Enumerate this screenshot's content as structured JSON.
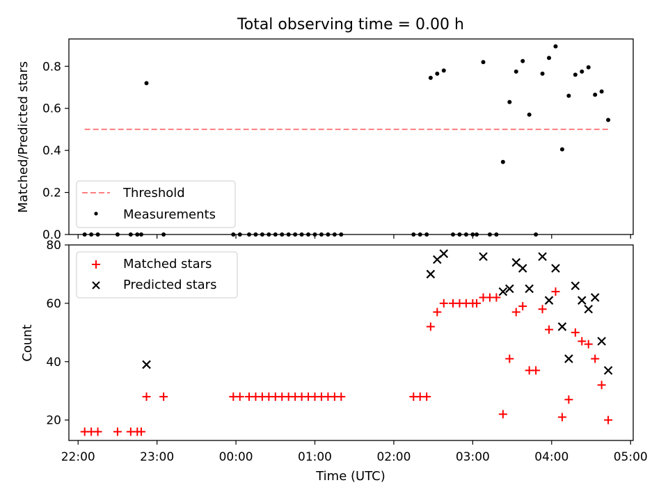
{
  "chart_data": [
    {
      "type": "scatter",
      "title": "Total observing time = 0.00 h",
      "ylabel": "Matched/Predicted stars",
      "xlim": [
        "21:53",
        "05:02"
      ],
      "ylim": [
        0,
        0.93
      ],
      "yticks": [
        0.0,
        0.2,
        0.4,
        0.6,
        0.8
      ],
      "ytick_labels": [
        "0.0",
        "0.2",
        "0.4",
        "0.6",
        "0.8"
      ],
      "legend": "lower-left",
      "series": [
        {
          "name": "Threshold",
          "style": "dashed",
          "color": "#ff7f7f",
          "points": [
            [
              "22:05",
              0.5
            ],
            [
              "04:43",
              0.5
            ]
          ]
        },
        {
          "name": "Measurements",
          "style": "dot",
          "color": "#000000",
          "points": [
            [
              "22:05",
              0.0
            ],
            [
              "22:10",
              0.0
            ],
            [
              "22:15",
              0.0
            ],
            [
              "22:30",
              0.0
            ],
            [
              "22:40",
              0.0
            ],
            [
              "22:45",
              0.0
            ],
            [
              "22:48",
              0.0
            ],
            [
              "22:52",
              0.72
            ],
            [
              "23:05",
              0.0
            ],
            [
              "23:58",
              0.0
            ],
            [
              "00:03",
              0.0
            ],
            [
              "00:10",
              0.0
            ],
            [
              "00:15",
              0.0
            ],
            [
              "00:20",
              0.0
            ],
            [
              "00:25",
              0.0
            ],
            [
              "00:30",
              0.0
            ],
            [
              "00:35",
              0.0
            ],
            [
              "00:40",
              0.0
            ],
            [
              "00:45",
              0.0
            ],
            [
              "00:50",
              0.0
            ],
            [
              "00:55",
              0.0
            ],
            [
              "01:00",
              0.0
            ],
            [
              "01:05",
              0.0
            ],
            [
              "01:10",
              0.0
            ],
            [
              "01:15",
              0.0
            ],
            [
              "01:20",
              0.0
            ],
            [
              "02:15",
              0.0
            ],
            [
              "02:20",
              0.0
            ],
            [
              "02:25",
              0.0
            ],
            [
              "02:28",
              0.745
            ],
            [
              "02:33",
              0.765
            ],
            [
              "02:38",
              0.78
            ],
            [
              "02:45",
              0.0
            ],
            [
              "02:50",
              0.0
            ],
            [
              "02:55",
              0.0
            ],
            [
              "03:00",
              0.0
            ],
            [
              "03:03",
              0.0
            ],
            [
              "03:08",
              0.82
            ],
            [
              "03:13",
              0.0
            ],
            [
              "03:18",
              0.0
            ],
            [
              "03:23",
              0.345
            ],
            [
              "03:28",
              0.63
            ],
            [
              "03:33",
              0.775
            ],
            [
              "03:38",
              0.825
            ],
            [
              "03:43",
              0.57
            ],
            [
              "03:48",
              0.0
            ],
            [
              "03:53",
              0.765
            ],
            [
              "03:58",
              0.84
            ],
            [
              "04:03",
              0.895
            ],
            [
              "04:08",
              0.405
            ],
            [
              "04:13",
              0.66
            ],
            [
              "04:18",
              0.76
            ],
            [
              "04:23",
              0.775
            ],
            [
              "04:28",
              0.795
            ],
            [
              "04:33",
              0.665
            ],
            [
              "04:38",
              0.68
            ],
            [
              "04:43",
              0.545
            ]
          ]
        }
      ]
    },
    {
      "type": "scatter",
      "xlabel": "Time (UTC)",
      "ylabel": "Count",
      "xlim": [
        "21:53",
        "05:02"
      ],
      "ylim": [
        13,
        80
      ],
      "yticks": [
        20,
        40,
        60,
        80
      ],
      "ytick_labels": [
        "20",
        "40",
        "60",
        "80"
      ],
      "xtick_labels": [
        "22:00",
        "23:00",
        "00:00",
        "01:00",
        "02:00",
        "03:00",
        "04:00",
        "05:00"
      ],
      "legend": "top-left",
      "series": [
        {
          "name": "Matched stars",
          "marker": "+",
          "color": "#ff0000",
          "points": [
            [
              "22:05",
              16
            ],
            [
              "22:10",
              16
            ],
            [
              "22:15",
              16
            ],
            [
              "22:30",
              16
            ],
            [
              "22:40",
              16
            ],
            [
              "22:45",
              16
            ],
            [
              "22:48",
              16
            ],
            [
              "22:52",
              28
            ],
            [
              "23:05",
              28
            ],
            [
              "23:58",
              28
            ],
            [
              "00:03",
              28
            ],
            [
              "00:10",
              28
            ],
            [
              "00:15",
              28
            ],
            [
              "00:20",
              28
            ],
            [
              "00:25",
              28
            ],
            [
              "00:30",
              28
            ],
            [
              "00:35",
              28
            ],
            [
              "00:40",
              28
            ],
            [
              "00:45",
              28
            ],
            [
              "00:50",
              28
            ],
            [
              "00:55",
              28
            ],
            [
              "01:00",
              28
            ],
            [
              "01:05",
              28
            ],
            [
              "01:10",
              28
            ],
            [
              "01:15",
              28
            ],
            [
              "01:20",
              28
            ],
            [
              "02:15",
              28
            ],
            [
              "02:20",
              28
            ],
            [
              "02:25",
              28
            ],
            [
              "02:28",
              52
            ],
            [
              "02:33",
              57
            ],
            [
              "02:38",
              60
            ],
            [
              "02:45",
              60
            ],
            [
              "02:50",
              60
            ],
            [
              "02:55",
              60
            ],
            [
              "03:00",
              60
            ],
            [
              "03:03",
              60
            ],
            [
              "03:08",
              62
            ],
            [
              "03:13",
              62
            ],
            [
              "03:18",
              62
            ],
            [
              "03:23",
              22
            ],
            [
              "03:28",
              41
            ],
            [
              "03:33",
              57
            ],
            [
              "03:38",
              59
            ],
            [
              "03:43",
              37
            ],
            [
              "03:48",
              37
            ],
            [
              "03:53",
              58
            ],
            [
              "03:58",
              51
            ],
            [
              "04:03",
              64
            ],
            [
              "04:08",
              21
            ],
            [
              "04:13",
              27
            ],
            [
              "04:18",
              50
            ],
            [
              "04:23",
              47
            ],
            [
              "04:28",
              46
            ],
            [
              "04:33",
              41
            ],
            [
              "04:38",
              32
            ],
            [
              "04:43",
              20
            ]
          ]
        },
        {
          "name": "Predicted stars",
          "marker": "x",
          "color": "#000000",
          "points": [
            [
              "22:52",
              39
            ],
            [
              "02:28",
              70
            ],
            [
              "02:33",
              75
            ],
            [
              "02:38",
              77
            ],
            [
              "03:08",
              76
            ],
            [
              "03:23",
              64
            ],
            [
              "03:28",
              65
            ],
            [
              "03:33",
              74
            ],
            [
              "03:38",
              72
            ],
            [
              "03:43",
              65
            ],
            [
              "03:53",
              76
            ],
            [
              "03:58",
              61
            ],
            [
              "04:03",
              72
            ],
            [
              "04:08",
              52
            ],
            [
              "04:13",
              41
            ],
            [
              "04:18",
              66
            ],
            [
              "04:23",
              61
            ],
            [
              "04:28",
              58
            ],
            [
              "04:33",
              62
            ],
            [
              "04:38",
              47
            ],
            [
              "04:43",
              37
            ]
          ]
        }
      ]
    }
  ]
}
